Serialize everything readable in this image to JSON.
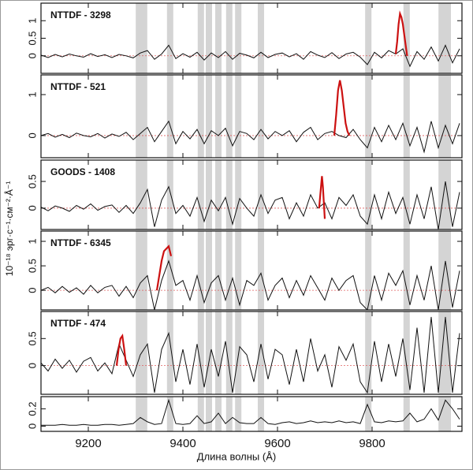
{
  "xlabel": "Длина волны (Å)",
  "ylabel": "10⁻¹⁸ эрг·с⁻¹·см⁻²·Å⁻¹",
  "xlim": [
    9100,
    9990
  ],
  "xticks": [
    9200,
    9400,
    9600,
    9800
  ],
  "bands": [
    9307,
    9318,
    9373,
    9438,
    9455,
    9475,
    9498,
    9517,
    9565,
    9792,
    9873,
    9947,
    9960
  ],
  "chart_data": [
    {
      "type": "line",
      "title": "NTTDF - 3298",
      "zero_line": true,
      "ylim": [
        -0.5,
        1.5
      ],
      "yticks": [
        0,
        0.5,
        1
      ],
      "x": [
        9100,
        9115,
        9130,
        9145,
        9160,
        9175,
        9190,
        9205,
        9220,
        9235,
        9250,
        9265,
        9280,
        9295,
        9310,
        9325,
        9340,
        9355,
        9370,
        9385,
        9400,
        9415,
        9430,
        9445,
        9460,
        9475,
        9490,
        9505,
        9520,
        9535,
        9550,
        9565,
        9580,
        9595,
        9610,
        9625,
        9640,
        9655,
        9670,
        9685,
        9700,
        9715,
        9730,
        9745,
        9760,
        9775,
        9790,
        9805,
        9820,
        9835,
        9850,
        9865,
        9880,
        9895,
        9910,
        9925,
        9940,
        9955,
        9970,
        9985
      ],
      "series": [
        {
          "color": "#111111",
          "values": [
            0.02,
            -0.05,
            0.04,
            -0.03,
            0.05,
            0.0,
            -0.04,
            0.06,
            -0.02,
            0.03,
            -0.05,
            0.04,
            0.0,
            -0.06,
            0.08,
            0.15,
            -0.1,
            0.05,
            0.3,
            -0.08,
            0.06,
            -0.04,
            0.1,
            -0.12,
            0.08,
            -0.05,
            0.12,
            -0.1,
            0.07,
            0.02,
            -0.06,
            0.1,
            -0.05,
            0.04,
            0.08,
            -0.03,
            0.06,
            -0.1,
            0.12,
            0.02,
            -0.05,
            0.09,
            -0.08,
            0.05,
            0.1,
            -0.04,
            -0.25,
            0.1,
            -0.06,
            0.15,
            0.05,
            0.2,
            -0.3,
            0.12,
            -0.1,
            0.25,
            -0.15,
            0.3,
            -0.2,
            0.2
          ]
        },
        {
          "color": "#cc1111",
          "x": [
            9850,
            9853,
            9856,
            9859,
            9862,
            9865,
            9868,
            9871,
            9874
          ],
          "values": [
            0.05,
            0.4,
            0.9,
            1.2,
            1.1,
            0.9,
            0.6,
            0.3,
            0.0
          ]
        }
      ]
    },
    {
      "type": "line",
      "title": "NTTDF - 521",
      "zero_line": true,
      "ylim": [
        -0.54,
        1.48
      ],
      "yticks": [
        0,
        1
      ],
      "x": [
        9100,
        9115,
        9130,
        9145,
        9160,
        9175,
        9190,
        9205,
        9220,
        9235,
        9250,
        9265,
        9280,
        9295,
        9310,
        9325,
        9340,
        9355,
        9370,
        9385,
        9400,
        9415,
        9430,
        9445,
        9460,
        9475,
        9490,
        9505,
        9520,
        9535,
        9550,
        9565,
        9580,
        9595,
        9610,
        9625,
        9640,
        9655,
        9670,
        9685,
        9700,
        9715,
        9730,
        9745,
        9760,
        9775,
        9790,
        9805,
        9820,
        9835,
        9850,
        9865,
        9880,
        9895,
        9910,
        9925,
        9940,
        9955,
        9970,
        9985
      ],
      "series": [
        {
          "color": "#111111",
          "values": [
            0.0,
            0.05,
            -0.04,
            0.03,
            -0.05,
            0.06,
            0.0,
            -0.03,
            0.05,
            -0.06,
            0.04,
            -0.02,
            0.08,
            -0.1,
            0.05,
            0.2,
            -0.15,
            0.1,
            0.35,
            -0.2,
            0.1,
            -0.08,
            0.15,
            -0.2,
            0.12,
            0.0,
            0.18,
            -0.25,
            0.1,
            0.05,
            -0.1,
            0.15,
            -0.08,
            0.1,
            0.0,
            0.12,
            -0.15,
            0.08,
            0.2,
            -0.1,
            0.05,
            0.1,
            0.0,
            -0.05,
            0.15,
            -0.1,
            -0.3,
            0.2,
            -0.15,
            0.25,
            -0.1,
            0.3,
            -0.25,
            0.2,
            -0.4,
            0.35,
            -0.3,
            0.25,
            -0.2,
            0.3
          ]
        },
        {
          "color": "#cc1111",
          "x": [
            9720,
            9724,
            9728,
            9732,
            9736,
            9740,
            9744,
            9748,
            9752
          ],
          "values": [
            0.0,
            0.5,
            1.1,
            1.35,
            1.1,
            0.7,
            0.3,
            0.1,
            0.0
          ]
        }
      ]
    },
    {
      "type": "line",
      "title": "GOODS - 1408",
      "zero_line": true,
      "ylim": [
        -0.4,
        0.9
      ],
      "yticks": [
        0,
        0.5
      ],
      "x": [
        9100,
        9115,
        9130,
        9145,
        9160,
        9175,
        9190,
        9205,
        9220,
        9235,
        9250,
        9265,
        9280,
        9295,
        9310,
        9325,
        9340,
        9355,
        9370,
        9385,
        9400,
        9415,
        9430,
        9445,
        9460,
        9475,
        9490,
        9505,
        9520,
        9535,
        9550,
        9565,
        9580,
        9595,
        9610,
        9625,
        9640,
        9655,
        9670,
        9685,
        9700,
        9715,
        9730,
        9745,
        9760,
        9775,
        9790,
        9805,
        9820,
        9835,
        9850,
        9865,
        9880,
        9895,
        9910,
        9925,
        9940,
        9955,
        9970,
        9985
      ],
      "series": [
        {
          "color": "#111111",
          "values": [
            0.02,
            -0.05,
            0.04,
            0.0,
            -0.06,
            0.05,
            -0.02,
            0.08,
            -0.04,
            0.03,
            0.06,
            -0.08,
            0.05,
            -0.1,
            0.1,
            0.35,
            -0.35,
            0.15,
            0.4,
            -0.1,
            0.05,
            -0.15,
            0.2,
            -0.25,
            0.15,
            -0.05,
            0.2,
            -0.3,
            0.18,
            0.0,
            -0.15,
            0.25,
            -0.1,
            0.15,
            0.2,
            -0.2,
            0.1,
            -0.15,
            0.25,
            0.0,
            0.1,
            -0.2,
            0.2,
            0.05,
            0.25,
            -0.15,
            -0.3,
            0.25,
            -0.2,
            0.3,
            -0.1,
            0.2,
            -0.3,
            0.25,
            -0.2,
            0.4,
            -0.4,
            0.5,
            -0.35,
            0.3
          ]
        },
        {
          "color": "#cc1111",
          "x": [
            9688,
            9690,
            9692,
            9694,
            9696,
            9698,
            9700
          ],
          "values": [
            0.0,
            0.2,
            0.4,
            0.6,
            0.4,
            0.1,
            -0.2
          ]
        }
      ]
    },
    {
      "type": "line",
      "title": "NTTDF - 6345",
      "zero_line": true,
      "ylim": [
        -0.4,
        1.21
      ],
      "yticks": [
        0,
        0.5,
        1
      ],
      "x": [
        9100,
        9115,
        9130,
        9145,
        9160,
        9175,
        9190,
        9205,
        9220,
        9235,
        9250,
        9265,
        9280,
        9295,
        9310,
        9325,
        9340,
        9355,
        9370,
        9385,
        9400,
        9415,
        9430,
        9445,
        9460,
        9475,
        9490,
        9505,
        9520,
        9535,
        9550,
        9565,
        9580,
        9595,
        9610,
        9625,
        9640,
        9655,
        9670,
        9685,
        9700,
        9715,
        9730,
        9745,
        9760,
        9775,
        9790,
        9805,
        9820,
        9835,
        9850,
        9865,
        9880,
        9895,
        9910,
        9925,
        9940,
        9955,
        9970,
        9985
      ],
      "series": [
        {
          "color": "#111111",
          "values": [
            0.0,
            0.06,
            -0.05,
            0.08,
            -0.04,
            0.05,
            -0.08,
            0.1,
            -0.05,
            0.06,
            0.1,
            -0.12,
            0.08,
            -0.15,
            0.15,
            0.3,
            -0.4,
            0.2,
            0.6,
            0.1,
            0.2,
            -0.2,
            0.3,
            -0.25,
            0.15,
            0.3,
            -0.2,
            0.25,
            -0.3,
            0.2,
            0.1,
            0.35,
            -0.2,
            0.1,
            0.25,
            -0.15,
            0.2,
            -0.1,
            0.3,
            0.05,
            -0.2,
            0.25,
            0.0,
            0.2,
            0.3,
            -0.25,
            -0.4,
            0.3,
            -0.2,
            0.35,
            0.1,
            0.4,
            -0.3,
            0.3,
            -0.2,
            0.5,
            -0.4,
            0.6,
            -0.35,
            0.4
          ]
        },
        {
          "color": "#cc1111",
          "x": [
            9345,
            9350,
            9355,
            9360,
            9365,
            9370,
            9375
          ],
          "values": [
            0.0,
            0.3,
            0.6,
            0.8,
            0.85,
            0.9,
            0.7
          ]
        }
      ]
    },
    {
      "type": "line",
      "title": "NTTDF - 474",
      "zero_line": true,
      "ylim": [
        -0.53,
        1.0
      ],
      "yticks": [
        0,
        0.5
      ],
      "x": [
        9100,
        9115,
        9130,
        9145,
        9160,
        9175,
        9190,
        9205,
        9220,
        9235,
        9250,
        9265,
        9280,
        9295,
        9310,
        9325,
        9340,
        9355,
        9370,
        9385,
        9400,
        9415,
        9430,
        9445,
        9460,
        9475,
        9490,
        9505,
        9520,
        9535,
        9550,
        9565,
        9580,
        9595,
        9610,
        9625,
        9640,
        9655,
        9670,
        9685,
        9700,
        9715,
        9730,
        9745,
        9760,
        9775,
        9790,
        9805,
        9820,
        9835,
        9850,
        9865,
        9880,
        9895,
        9910,
        9925,
        9940,
        9955,
        9970,
        9985
      ],
      "series": [
        {
          "color": "#111111",
          "values": [
            0.05,
            -0.1,
            0.12,
            -0.05,
            0.1,
            -0.12,
            0.08,
            0.15,
            -0.1,
            0.05,
            -0.15,
            0.4,
            0.1,
            -0.2,
            0.2,
            0.4,
            -0.5,
            0.3,
            0.6,
            -0.3,
            0.3,
            -0.35,
            0.4,
            -0.4,
            0.3,
            -0.2,
            0.45,
            -0.5,
            0.35,
            0.2,
            -0.3,
            0.4,
            -0.25,
            0.3,
            0.2,
            -0.35,
            0.3,
            -0.3,
            0.5,
            -0.1,
            0.2,
            -0.4,
            0.35,
            0.1,
            0.4,
            -0.3,
            -0.5,
            0.45,
            -0.3,
            0.4,
            -0.2,
            0.5,
            -0.45,
            0.7,
            -0.5,
            0.9,
            -0.5,
            0.9,
            -0.5,
            0.6
          ]
        },
        {
          "color": "#cc1111",
          "x": [
            9260,
            9264,
            9268,
            9272,
            9276,
            9280
          ],
          "values": [
            0.0,
            0.3,
            0.5,
            0.55,
            0.3,
            0.0
          ]
        }
      ]
    },
    {
      "type": "line",
      "zero_line": false,
      "ylim": [
        -0.06,
        0.34
      ],
      "yticks": [
        0,
        0.2
      ],
      "x": [
        9100,
        9115,
        9130,
        9145,
        9160,
        9175,
        9190,
        9205,
        9220,
        9235,
        9250,
        9265,
        9280,
        9295,
        9310,
        9325,
        9340,
        9355,
        9370,
        9385,
        9400,
        9415,
        9430,
        9445,
        9460,
        9475,
        9490,
        9505,
        9520,
        9535,
        9550,
        9565,
        9580,
        9595,
        9610,
        9625,
        9640,
        9655,
        9670,
        9685,
        9700,
        9715,
        9730,
        9745,
        9760,
        9775,
        9790,
        9805,
        9820,
        9835,
        9850,
        9865,
        9880,
        9895,
        9910,
        9925,
        9940,
        9955,
        9970,
        9985
      ],
      "series": [
        {
          "color": "#111111",
          "values": [
            0.01,
            0.01,
            0.01,
            0.02,
            0.01,
            0.01,
            0.02,
            0.01,
            0.01,
            0.02,
            0.02,
            0.01,
            0.02,
            0.03,
            0.1,
            0.05,
            0.02,
            0.03,
            0.3,
            0.03,
            0.02,
            0.03,
            0.12,
            0.03,
            0.05,
            0.15,
            0.03,
            0.1,
            0.04,
            0.03,
            0.03,
            0.1,
            0.03,
            0.02,
            0.04,
            0.05,
            0.03,
            0.04,
            0.06,
            0.04,
            0.05,
            0.04,
            0.06,
            0.04,
            0.05,
            0.03,
            0.25,
            0.05,
            0.04,
            0.06,
            0.05,
            0.06,
            0.15,
            0.05,
            0.08,
            0.2,
            0.07,
            0.3,
            0.2,
            0.08
          ]
        }
      ]
    }
  ]
}
